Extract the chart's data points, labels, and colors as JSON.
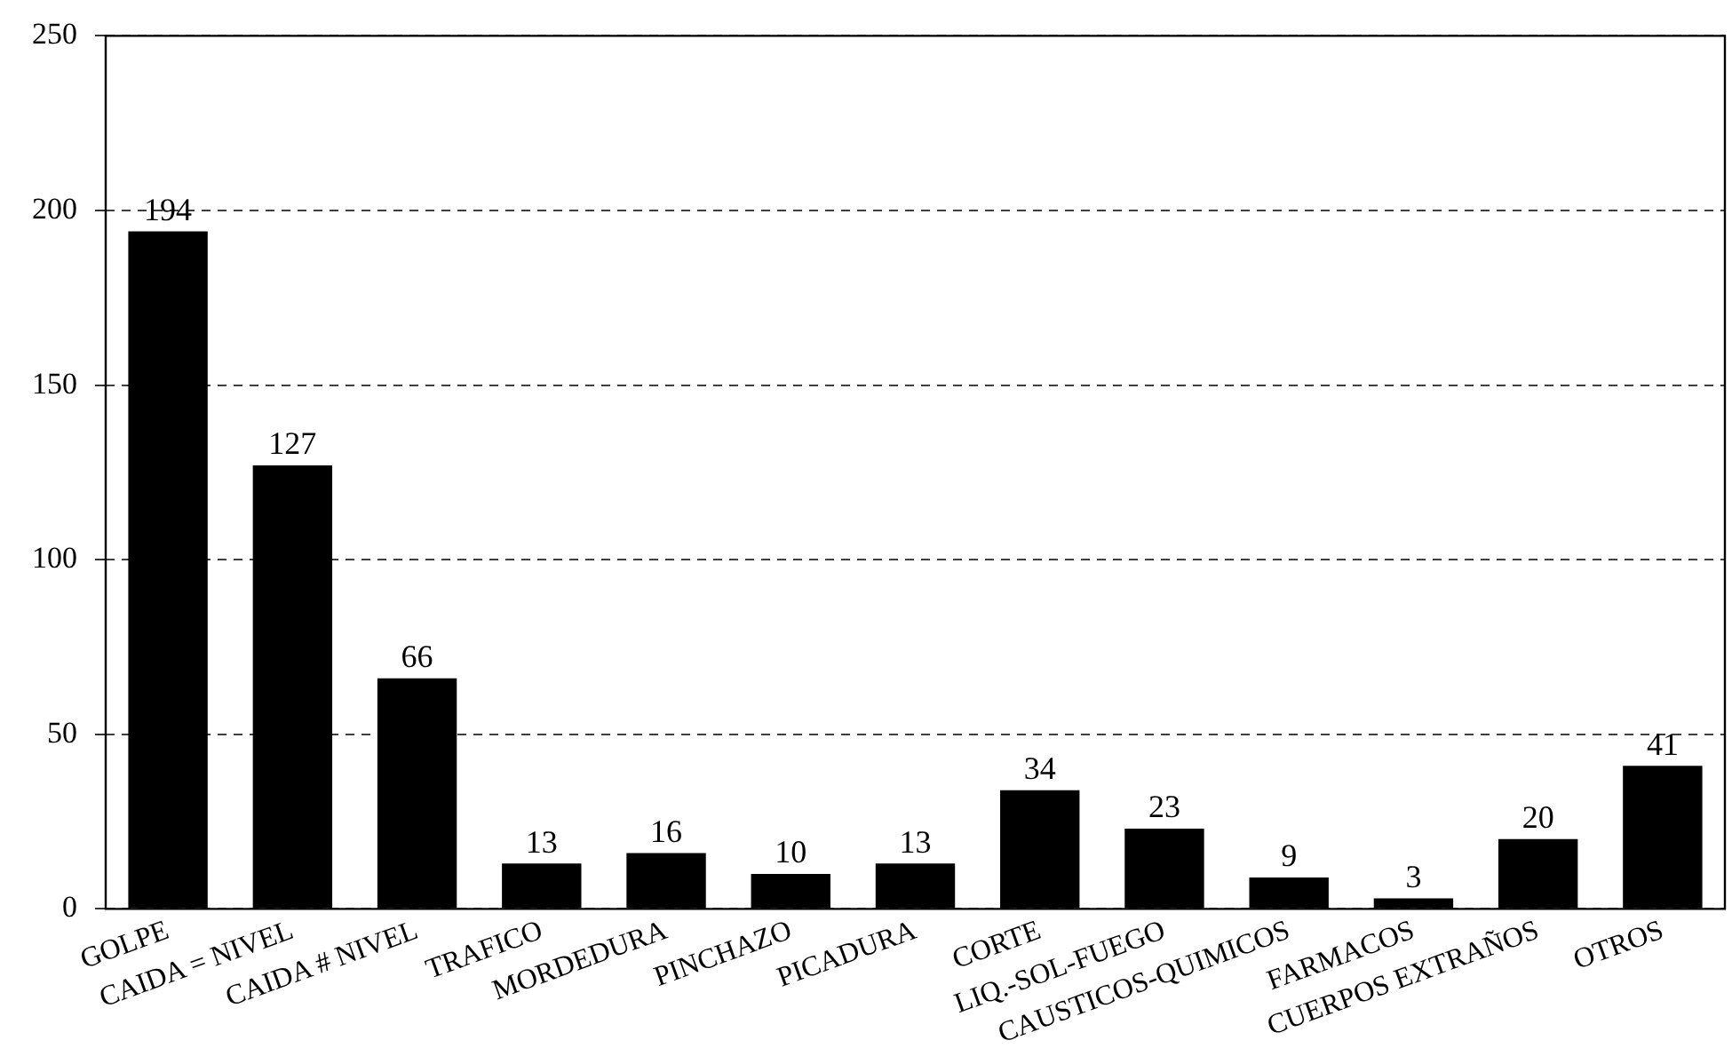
{
  "chart_data": {
    "type": "bar",
    "categories": [
      "GOLPE",
      "CAIDA = NIVEL",
      "CAIDA # NIVEL",
      "TRAFICO",
      "MORDEDURA",
      "PINCHAZO",
      "PICADURA",
      "CORTE",
      "LIQ.-SOL-FUEGO",
      "CAUSTICOS-QUIMICOS",
      "FARMACOS",
      "CUERPOS EXTRAÑOS",
      "OTROS"
    ],
    "values": [
      194,
      127,
      66,
      13,
      16,
      10,
      13,
      34,
      23,
      9,
      3,
      20,
      41
    ],
    "color": "#000000",
    "ylim": [
      0,
      250
    ],
    "yticks": [
      0,
      50,
      100,
      150,
      200,
      250
    ],
    "grid": "y",
    "data_labels": true,
    "legend": false
  }
}
